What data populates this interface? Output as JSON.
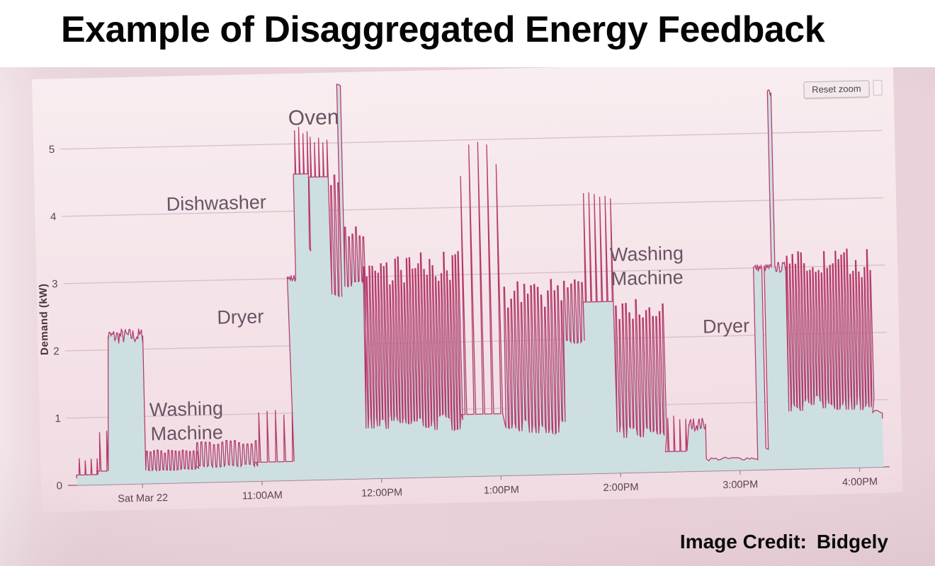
{
  "header": {
    "title": "Example of Disaggregated Energy Feedback"
  },
  "footer": {
    "credit_label": "Image Credit:",
    "credit_name": "Bidgely"
  },
  "chart": {
    "reset_zoom_label": "Reset zoom"
  },
  "chart_data": {
    "type": "area",
    "title": "",
    "xlabel": "",
    "ylabel": "Demand (kW)",
    "ylim": [
      0,
      5.9
    ],
    "x_range": [
      9.4,
      16.25
    ],
    "y_ticks": [
      0,
      1,
      2,
      3,
      4,
      5
    ],
    "x_ticks": [
      {
        "t": 10.0,
        "label": "Sat Mar 22"
      },
      {
        "t": 11.0,
        "label": "11:00AM"
      },
      {
        "t": 12.0,
        "label": "12:00PM"
      },
      {
        "t": 13.0,
        "label": "1:00PM"
      },
      {
        "t": 14.0,
        "label": "2:00PM"
      },
      {
        "t": 15.0,
        "label": "3:00PM"
      },
      {
        "t": 16.0,
        "label": "4:00PM"
      }
    ],
    "line_color": "#b5396a",
    "fill_color": "#cbdee2",
    "grid_color": "#dac0ca",
    "baseline_color": "#a2808e",
    "tick_color": "#5d4150",
    "axis_title_color": "#4a323e",
    "annotation_color": "#6a5363",
    "annotations": [
      {
        "lines": [
          "Oven"
        ],
        "t": 11.5,
        "v": 5.28,
        "size": 30
      },
      {
        "lines": [
          "Dishwasher"
        ],
        "t": 10.67,
        "v": 4.05,
        "size": 27
      },
      {
        "lines": [
          "Dryer"
        ],
        "t": 10.85,
        "v": 2.35,
        "size": 27
      },
      {
        "lines": [
          "Washing",
          "Machine"
        ],
        "t": 10.38,
        "v": 1.0,
        "size": 27
      },
      {
        "lines": [
          "Washing",
          "Machine"
        ],
        "t": 14.26,
        "v": 3.15,
        "size": 27
      },
      {
        "lines": [
          "Dryer"
        ],
        "t": 14.91,
        "v": 2.05,
        "size": 27
      }
    ],
    "segments": [
      {
        "kind": "spikes",
        "t0": 9.45,
        "t1": 9.62,
        "lo": 0.15,
        "hi": 0.4,
        "p": 0.05
      },
      {
        "kind": "spikes",
        "t0": 9.62,
        "t1": 9.74,
        "lo": 0.2,
        "hi": 0.85,
        "p": 0.06
      },
      {
        "kind": "block",
        "t0": 9.74,
        "t1": 10.03,
        "level": 2.2,
        "jitter": 0.12
      },
      {
        "kind": "osc",
        "t0": 10.03,
        "t1": 10.45,
        "lo": 0.18,
        "hi": 0.5,
        "p": 0.03
      },
      {
        "kind": "osc",
        "t0": 10.45,
        "t1": 10.95,
        "lo": 0.22,
        "hi": 0.62,
        "p": 0.035
      },
      {
        "kind": "spikes",
        "t0": 10.95,
        "t1": 11.25,
        "lo": 0.28,
        "hi": 1.05,
        "p": 0.07
      },
      {
        "kind": "block",
        "t0": 11.25,
        "t1": 11.32,
        "level": 3.0,
        "jitter": 0.06
      },
      {
        "kind": "spikes",
        "t0": 11.32,
        "t1": 11.44,
        "lo": 4.55,
        "hi": 5.25,
        "p": 0.035
      },
      {
        "kind": "flat",
        "t0": 11.44,
        "t1": 11.45,
        "lo": 3.4,
        "amp": 0.05
      },
      {
        "kind": "spikes",
        "t0": 11.45,
        "t1": 11.62,
        "lo": 4.5,
        "hi": 5.1,
        "p": 0.035
      },
      {
        "kind": "osc",
        "t0": 11.62,
        "t1": 11.7,
        "lo": 2.7,
        "hi": 4.6,
        "p": 0.03
      },
      {
        "kind": "block",
        "t0": 11.7,
        "t1": 11.73,
        "level": 5.85,
        "jitter": 0.04
      },
      {
        "kind": "osc",
        "t0": 11.73,
        "t1": 11.88,
        "lo": 2.85,
        "hi": 3.75,
        "p": 0.03
      },
      {
        "kind": "osc",
        "t0": 11.88,
        "t1": 12.68,
        "lo": 0.68,
        "hi": 3.35,
        "p": 0.024
      },
      {
        "kind": "spikes",
        "t0": 12.68,
        "t1": 13.05,
        "lo": 0.92,
        "hi": 5.05,
        "p": 0.075
      },
      {
        "kind": "osc",
        "t0": 13.05,
        "t1": 13.55,
        "lo": 0.6,
        "hi": 2.9,
        "p": 0.028
      },
      {
        "kind": "osc",
        "t0": 13.55,
        "t1": 13.72,
        "lo": 1.9,
        "hi": 2.95,
        "p": 0.03
      },
      {
        "kind": "spikes",
        "t0": 13.72,
        "t1": 13.98,
        "lo": 2.55,
        "hi": 4.35,
        "p": 0.045
      },
      {
        "kind": "osc",
        "t0": 13.98,
        "t1": 14.38,
        "lo": 0.5,
        "hi": 2.65,
        "p": 0.028
      },
      {
        "kind": "spikes",
        "t0": 14.38,
        "t1": 14.58,
        "lo": 0.3,
        "hi": 0.85,
        "p": 0.05
      },
      {
        "kind": "block",
        "t0": 14.58,
        "t1": 14.72,
        "level": 0.7,
        "jitter": 0.1
      },
      {
        "kind": "flat",
        "t0": 14.72,
        "t1": 15.15,
        "lo": 0.15,
        "amp": 0.05
      },
      {
        "kind": "block",
        "t0": 15.15,
        "t1": 15.22,
        "level": 3.0,
        "jitter": 0.06
      },
      {
        "kind": "flat",
        "t0": 15.22,
        "t1": 15.24,
        "lo": 0.3,
        "amp": 0.03
      },
      {
        "kind": "block",
        "t0": 15.24,
        "t1": 15.3,
        "level": 3.0,
        "jitter": 0.06
      },
      {
        "kind": "block",
        "t0": 15.3,
        "t1": 15.33,
        "level": 5.6,
        "jitter": 0.05
      },
      {
        "kind": "block",
        "t0": 15.33,
        "t1": 15.42,
        "level": 3.0,
        "jitter": 0.08
      },
      {
        "kind": "osc",
        "t0": 15.42,
        "t1": 16.12,
        "lo": 0.85,
        "hi": 3.25,
        "p": 0.024
      },
      {
        "kind": "flat",
        "t0": 16.12,
        "t1": 16.2,
        "lo": 0.8,
        "amp": 0.05
      }
    ]
  }
}
